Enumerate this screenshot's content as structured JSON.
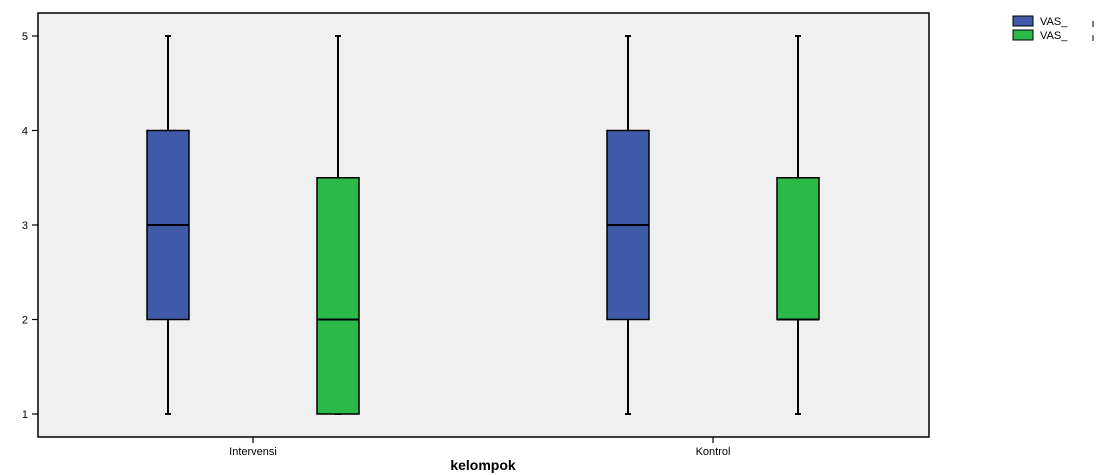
{
  "chart_data": {
    "type": "boxplot",
    "title": "",
    "xlabel": "kelompok",
    "ylabel": "",
    "ylim": [
      0.8,
      5.2
    ],
    "yticks": [
      1,
      2,
      3,
      4,
      5
    ],
    "categories": [
      "Intervensi",
      "Kontrol"
    ],
    "legend_position": "top-right",
    "grid": false,
    "background_color": "#f0f0f0",
    "series": [
      {
        "name": "VAS_",
        "color": "#3f5aa9",
        "boxes": [
          {
            "min": 1,
            "q1": 2,
            "median": 3,
            "q3": 4,
            "max": 5
          },
          {
            "min": 1,
            "q1": 2,
            "median": 3,
            "q3": 4,
            "max": 5
          }
        ]
      },
      {
        "name": "VAS_",
        "color": "#2db84a",
        "boxes": [
          {
            "min": 1,
            "q1": 1,
            "median": 2,
            "q3": 3.5,
            "max": 5
          },
          {
            "min": 1,
            "q1": 2,
            "median": 2,
            "q3": 3.5,
            "max": 5
          }
        ]
      }
    ]
  }
}
